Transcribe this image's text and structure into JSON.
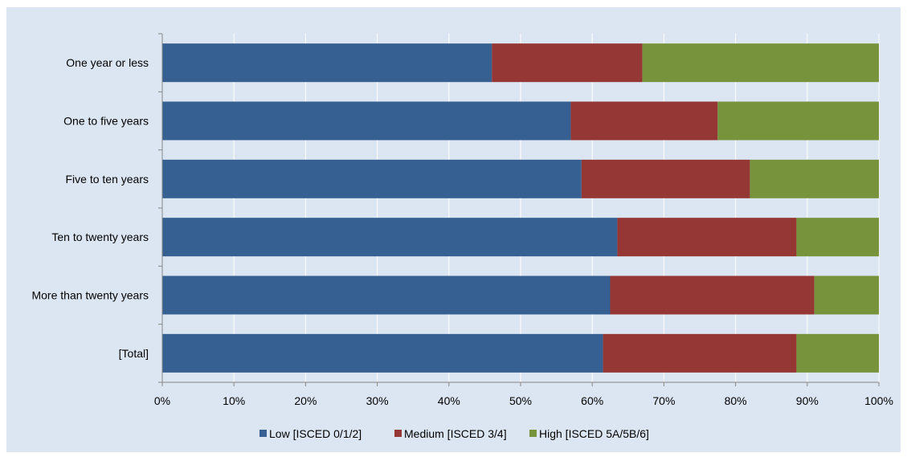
{
  "chart_data": {
    "type": "bar",
    "orientation": "horizontal",
    "stacked": true,
    "percent_stacked": true,
    "title": "",
    "xlabel": "",
    "ylabel": "",
    "categories": [
      "One year or less",
      "One to five years",
      "Five to ten years",
      "Ten to twenty years",
      "More than twenty years",
      "[Total]"
    ],
    "series": [
      {
        "name": "Low [ISCED 0/1/2]",
        "color": "#376092",
        "values": [
          46,
          57,
          58.5,
          63.5,
          62.5,
          61.5
        ]
      },
      {
        "name": "Medium [ISCED 3/4]",
        "color": "#953735",
        "values": [
          21,
          20.5,
          23.5,
          25,
          28.5,
          27
        ]
      },
      {
        "name": "High [ISCED 5A/5B/6]",
        "color": "#77933c",
        "values": [
          33,
          22.5,
          18,
          11.5,
          9,
          11.5
        ]
      }
    ],
    "xlim": [
      0,
      100
    ],
    "x_ticks": [
      "0%",
      "10%",
      "20%",
      "30%",
      "40%",
      "50%",
      "60%",
      "70%",
      "80%",
      "90%",
      "100%"
    ],
    "grid": true,
    "legend_position": "bottom",
    "background_color": "#dce6f2",
    "grid_color": "#ffffff"
  }
}
